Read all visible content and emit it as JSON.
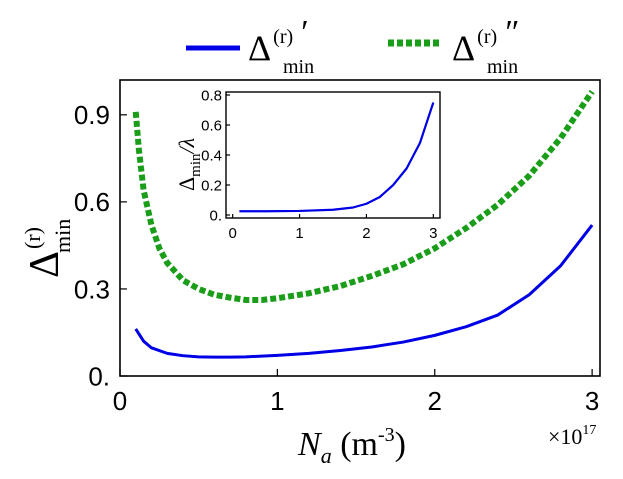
{
  "chart_data": [
    {
      "type": "line",
      "xlabel": "N_a (m^-3)",
      "xlabel_base": "N",
      "xlabel_sub": "a",
      "xlabel_unit": " (m",
      "xlabel_exp": "-3",
      "xlabel_close": ")",
      "x_multiplier": "×10",
      "x_multiplier_exp": "17",
      "ylabel_base": "Δ",
      "ylabel_sup": "(r)",
      "ylabel_sub": "min",
      "xlim": [
        0,
        3.05
      ],
      "ylim": [
        0,
        1.02
      ],
      "xticks": [
        0,
        1,
        2,
        3
      ],
      "xtick_labels": [
        "0",
        "1",
        "2",
        "3"
      ],
      "yticks": [
        0,
        0.3,
        0.6,
        0.9
      ],
      "ytick_labels": [
        "0.",
        "0.3",
        "0.6",
        "0.9"
      ],
      "legend_position": "top",
      "series": [
        {
          "legend_base": "Δ",
          "legend_sup": "(r)",
          "legend_sub": "min",
          "legend_mark": "′",
          "color": "#0000e6",
          "style": "solid",
          "x": [
            0.1,
            0.15,
            0.2,
            0.3,
            0.4,
            0.5,
            0.6,
            0.7,
            0.8,
            1.0,
            1.2,
            1.4,
            1.6,
            1.8,
            2.0,
            2.2,
            2.4,
            2.6,
            2.8,
            3.0
          ],
          "y": [
            0.162,
            0.12,
            0.097,
            0.078,
            0.07,
            0.066,
            0.065,
            0.065,
            0.066,
            0.071,
            0.078,
            0.088,
            0.1,
            0.117,
            0.14,
            0.17,
            0.21,
            0.28,
            0.38,
            0.52
          ]
        },
        {
          "legend_base": "Δ",
          "legend_sup": "(r)",
          "legend_sub": "min",
          "legend_mark": "″",
          "color": "#1a9e1a",
          "style": "dotted",
          "x": [
            0.1,
            0.12,
            0.15,
            0.2,
            0.25,
            0.3,
            0.4,
            0.5,
            0.6,
            0.7,
            0.8,
            0.9,
            1.0,
            1.2,
            1.4,
            1.6,
            1.8,
            2.0,
            2.2,
            2.4,
            2.6,
            2.8,
            3.0
          ],
          "y": [
            0.91,
            0.78,
            0.64,
            0.52,
            0.44,
            0.39,
            0.33,
            0.3,
            0.28,
            0.27,
            0.262,
            0.262,
            0.268,
            0.285,
            0.31,
            0.345,
            0.385,
            0.44,
            0.51,
            0.59,
            0.69,
            0.82,
            0.98
          ]
        }
      ]
    },
    {
      "type": "line",
      "inset": true,
      "ylabel": "Δmin/λ",
      "ylabel_base": "Δ",
      "ylabel_sub": "min",
      "ylabel_rest": "/λ",
      "xlim": [
        -0.1,
        3.1
      ],
      "ylim": [
        -0.02,
        0.82
      ],
      "xticks": [
        0,
        1,
        2,
        3
      ],
      "xtick_labels": [
        "0",
        "1",
        "2",
        "3"
      ],
      "yticks": [
        0,
        0.2,
        0.4,
        0.6,
        0.8
      ],
      "ytick_labels": [
        "0.",
        "0.2",
        "0.4",
        "0.6",
        "0.8"
      ],
      "series": [
        {
          "color": "#0000e6",
          "style": "solid",
          "x": [
            0.1,
            0.5,
            1.0,
            1.5,
            1.8,
            2.0,
            2.2,
            2.4,
            2.6,
            2.8,
            3.0
          ],
          "y": [
            0.025,
            0.025,
            0.027,
            0.035,
            0.05,
            0.075,
            0.12,
            0.2,
            0.31,
            0.48,
            0.75
          ]
        }
      ]
    }
  ]
}
